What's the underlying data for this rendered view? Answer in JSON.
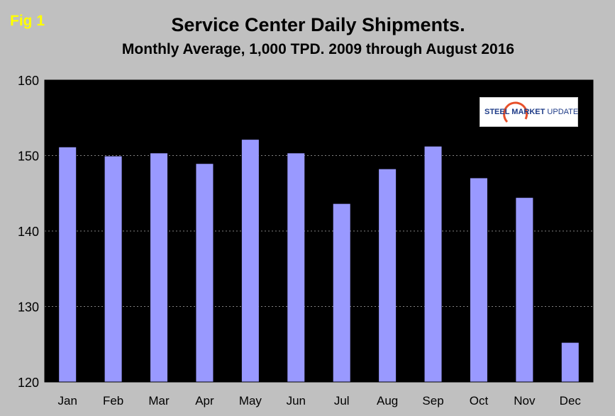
{
  "fig_label": "Fig 1",
  "chart_data": {
    "type": "bar",
    "title": "Service Center Daily Shipments.",
    "subtitle": "Monthly Average, 1,000 TPD.  2009 through August 2016",
    "categories": [
      "Jan",
      "Feb",
      "Mar",
      "Apr",
      "May",
      "Jun",
      "Jul",
      "Aug",
      "Sep",
      "Oct",
      "Nov",
      "Dec"
    ],
    "values": [
      151.1,
      149.9,
      150.3,
      148.9,
      152.1,
      150.3,
      143.6,
      148.2,
      151.2,
      147.0,
      144.4,
      125.2
    ],
    "ylim": [
      120,
      160
    ],
    "yticks": [
      "120",
      "130",
      "140",
      "150",
      "160"
    ],
    "xlabel": "",
    "ylabel": "",
    "grid": true,
    "colors": {
      "bar": "#9999ff",
      "plot_bg": "#000000",
      "grid": "#808080"
    }
  },
  "logo": {
    "brand_bold": "STEEL MARKET",
    "brand_rest": " UPDATE"
  }
}
